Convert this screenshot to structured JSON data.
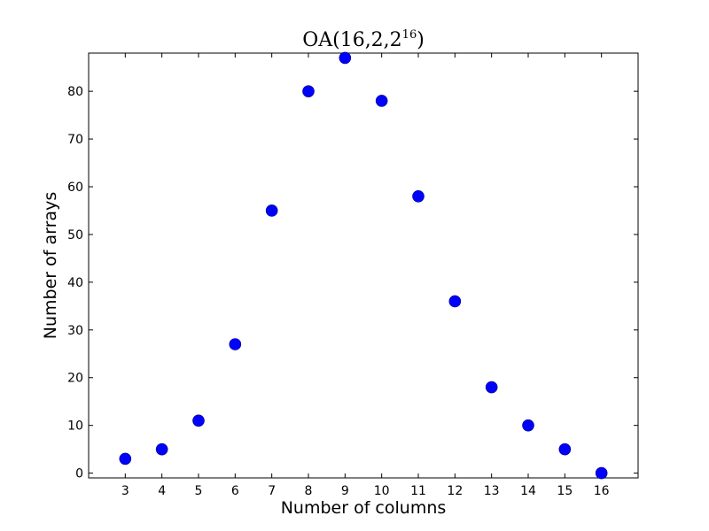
{
  "chart_data": {
    "type": "scatter",
    "title": "OA(16,2,2",
    "title_superscript": "16",
    "title_suffix": ")",
    "xlabel": "Number of columns",
    "ylabel": "Number of arrays",
    "xlim": [
      2,
      17
    ],
    "ylim": [
      -1,
      88
    ],
    "xticks": [
      "3",
      "4",
      "5",
      "6",
      "7",
      "8",
      "9",
      "10",
      "11",
      "12",
      "13",
      "14",
      "15",
      "16"
    ],
    "yticks": [
      "0",
      "10",
      "20",
      "30",
      "40",
      "50",
      "60",
      "70",
      "80"
    ],
    "grid": false,
    "series": [
      {
        "color": "#0000ff",
        "x": [
          3,
          4,
          5,
          6,
          7,
          8,
          9,
          10,
          11,
          12,
          13,
          14,
          15,
          16
        ],
        "y": [
          3,
          5,
          11,
          27,
          55,
          80,
          87,
          78,
          58,
          36,
          18,
          10,
          5,
          0
        ]
      }
    ]
  }
}
